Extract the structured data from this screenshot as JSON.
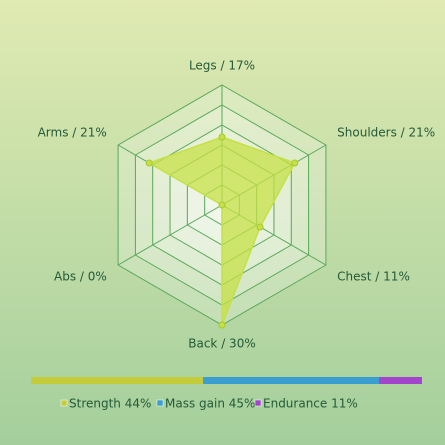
{
  "chart_data": [
    {
      "type": "radar",
      "categories": [
        "Legs / 17%",
        "Shoulders / 21%",
        "Chest / 11%",
        "Back / 30%",
        "Abs / 0%",
        "Arms / 21%"
      ],
      "values": [
        17,
        21,
        11,
        30,
        0,
        21
      ],
      "color": "#c6e046",
      "rlim": [
        0,
        30
      ],
      "rticks": [
        5,
        10,
        15,
        20,
        25,
        30
      ]
    },
    {
      "type": "stacked-bar",
      "series": [
        {
          "name": "Strength 44%",
          "color": "#c4cc3c",
          "values": [
            44
          ]
        },
        {
          "name": "Mass gain 45%",
          "color": "#3a9ed0",
          "values": [
            45
          ]
        },
        {
          "name": "Endurance 11%",
          "color": "#a244cc",
          "values": [
            11
          ]
        }
      ],
      "xlim": [
        0,
        100
      ]
    }
  ]
}
